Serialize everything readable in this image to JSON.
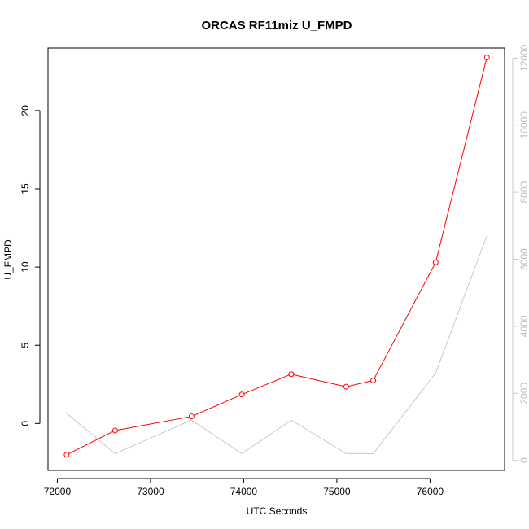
{
  "chart_data": {
    "type": "line",
    "title": "ORCAS RF11miz U_FMPD",
    "xlabel": "UTC Seconds",
    "ylabel": "U_FMPD",
    "xlim": [
      71900,
      76800
    ],
    "ylim": [
      -3.0,
      24.0
    ],
    "y2lim": [
      -300,
      12300
    ],
    "xticks": [
      72000,
      73000,
      74000,
      75000,
      76000
    ],
    "yticks": [
      0,
      5,
      10,
      15,
      20
    ],
    "y2ticks": [
      0,
      2000,
      4000,
      6000,
      8000,
      10000,
      12000
    ],
    "series": [
      {
        "color": "#ff0000",
        "axis": "left",
        "points": [
          {
            "x": 72100,
            "y": -2.0
          },
          {
            "x": 72620,
            "y": -0.45
          },
          {
            "x": 73440,
            "y": 0.45
          },
          {
            "x": 73980,
            "y": 1.85
          },
          {
            "x": 74510,
            "y": 3.15
          },
          {
            "x": 75100,
            "y": 2.35
          },
          {
            "x": 75390,
            "y": 2.75
          },
          {
            "x": 76060,
            "y": 10.3
          },
          {
            "x": 76610,
            "y": 23.4
          }
        ]
      },
      {
        "color": "#c8c8c8",
        "axis": "right",
        "points": [
          {
            "x": 72100,
            "y": 1400
          },
          {
            "x": 72620,
            "y": 200
          },
          {
            "x": 73440,
            "y": 1200
          },
          {
            "x": 73980,
            "y": 200
          },
          {
            "x": 74510,
            "y": 1200
          },
          {
            "x": 75100,
            "y": 200
          },
          {
            "x": 75390,
            "y": 200
          },
          {
            "x": 76060,
            "y": 2600
          },
          {
            "x": 76610,
            "y": 6700
          }
        ]
      }
    ],
    "grid": false
  }
}
